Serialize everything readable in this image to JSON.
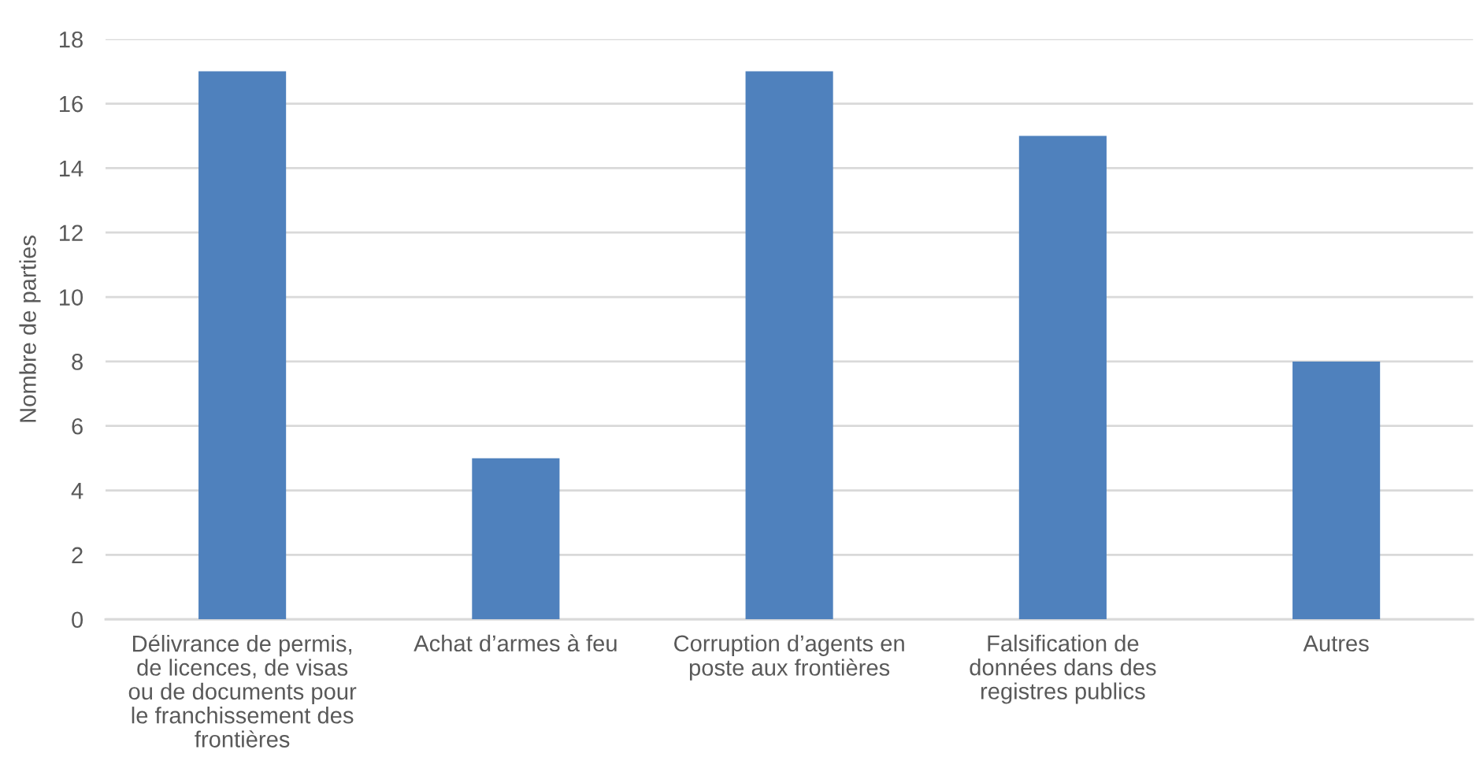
{
  "chart_data": {
    "type": "bar",
    "categories": [
      "Délivrance de permis,\nde licences, de visas\nou de documents pour\nle franchissement des\nfrontières",
      "Achat d’armes à feu",
      "Corruption d’agents en\nposte aux frontières",
      "Falsification de\ndonnées dans des\nregistres publics",
      "Autres"
    ],
    "values": [
      17,
      5,
      17,
      15,
      8
    ],
    "color": "#4f81bd",
    "ylabel": "Nombre de parties",
    "ylim": [
      0,
      18
    ],
    "yticks": [
      0,
      2,
      4,
      6,
      8,
      10,
      12,
      14,
      16,
      18
    ],
    "grid": "y"
  }
}
